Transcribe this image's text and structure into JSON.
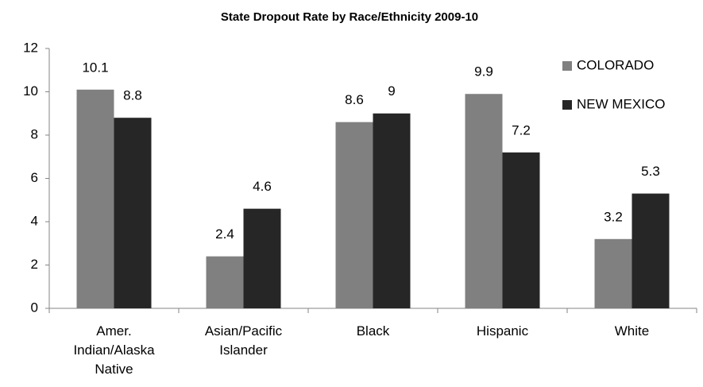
{
  "chart_data": {
    "type": "bar",
    "title": "State Dropout Rate by Race/Ethnicity 2009-10",
    "categories": [
      "Amer. Indian/Alaska Native",
      "Asian/Pacific Islander",
      "Black",
      "Hispanic",
      "White"
    ],
    "series": [
      {
        "name": "COLORADO",
        "color": "#808080",
        "values": [
          10.1,
          2.4,
          8.6,
          9.9,
          3.2
        ]
      },
      {
        "name": "NEW MEXICO",
        "color": "#262626",
        "values": [
          8.8,
          4.6,
          9,
          7.2,
          5.3
        ]
      }
    ],
    "ylim": [
      0,
      12
    ],
    "yticks": [
      0,
      2,
      4,
      6,
      8,
      10,
      12
    ],
    "legend": "top-right"
  }
}
